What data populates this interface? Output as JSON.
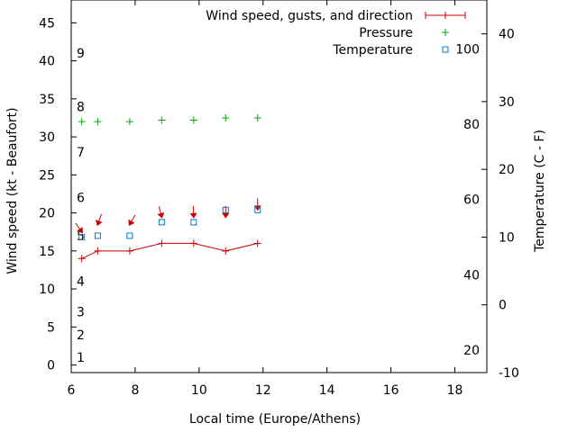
{
  "chart_data": {
    "type": "line",
    "xlabel": "Local time (Europe/Athens)",
    "ylabel_left": "Wind speed (kt - Beaufort)",
    "ylabel_right": "Temperature (C - F)",
    "xlim": [
      6,
      19
    ],
    "ylim_left": [
      -1,
      48
    ],
    "ylim_temp_c": [
      -10,
      45
    ],
    "x_ticks": [
      6,
      8,
      10,
      12,
      14,
      16,
      18
    ],
    "y_ticks_left": [
      0,
      5,
      10,
      15,
      20,
      25,
      30,
      35,
      40,
      45
    ],
    "temp_c_ticks": [
      -10,
      0,
      10,
      20,
      30,
      40
    ],
    "temp_f_ticks": [
      20,
      40,
      60,
      80,
      100
    ],
    "beaufort_ticks": [
      {
        "label": "1",
        "value": 1
      },
      {
        "label": "2",
        "value": 4
      },
      {
        "label": "3",
        "value": 7
      },
      {
        "label": "4",
        "value": 11
      },
      {
        "label": "5",
        "value": 17
      },
      {
        "label": "6",
        "value": 22
      },
      {
        "label": "7",
        "value": 28
      },
      {
        "label": "8",
        "value": 34
      },
      {
        "label": "9",
        "value": 41
      }
    ],
    "legend_position": "top-right",
    "series": [
      {
        "name": "Wind speed, gusts, and direction",
        "color": "#cc0000",
        "x": [
          6.33,
          6.83,
          7.83,
          8.83,
          9.83,
          10.83,
          11.83
        ],
        "y": [
          14,
          15,
          15,
          16,
          16,
          15,
          16
        ],
        "arrow_base": [
          17.5,
          18.5,
          18.5,
          19.5,
          19.5,
          19.5,
          20.5
        ],
        "arrow_angle_deg": [
          -35,
          20,
          30,
          -15,
          -2,
          0,
          0
        ]
      },
      {
        "name": "Pressure",
        "color": "#00aa00",
        "x": [
          6.33,
          6.83,
          7.83,
          8.83,
          9.83,
          10.83,
          11.83
        ],
        "y": [
          32,
          32,
          32,
          32.2,
          32.2,
          32.5,
          32.5
        ]
      },
      {
        "name": "Temperature",
        "color": "#0077cc",
        "x": [
          6.33,
          6.83,
          7.83,
          8.83,
          9.83,
          10.83,
          11.83
        ],
        "y_temp_c": [
          10,
          10.2,
          10.2,
          12.2,
          12.2,
          14,
          14
        ]
      }
    ]
  }
}
